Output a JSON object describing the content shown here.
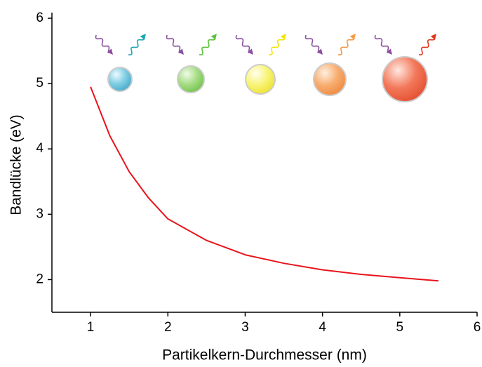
{
  "chart_data": {
    "type": "line",
    "x_label": "Partikelkern-Durchmesser (nm)",
    "y_label": "Bandlücke (eV)",
    "x": [
      1,
      1.25,
      1.5,
      1.75,
      2,
      2.5,
      3,
      3.5,
      4,
      4.5,
      5,
      5.5
    ],
    "values": [
      4.95,
      4.2,
      3.65,
      3.25,
      2.93,
      2.6,
      2.38,
      2.25,
      2.15,
      2.08,
      2.03,
      1.98
    ],
    "color": "#e8141c",
    "xlim": [
      0.5,
      6
    ],
    "xticks": [
      1,
      2,
      3,
      4,
      5,
      6
    ],
    "ylim": [
      1.5,
      6
    ],
    "yticks": [
      2,
      3,
      4,
      5,
      6
    ],
    "grid": false
  }
}
